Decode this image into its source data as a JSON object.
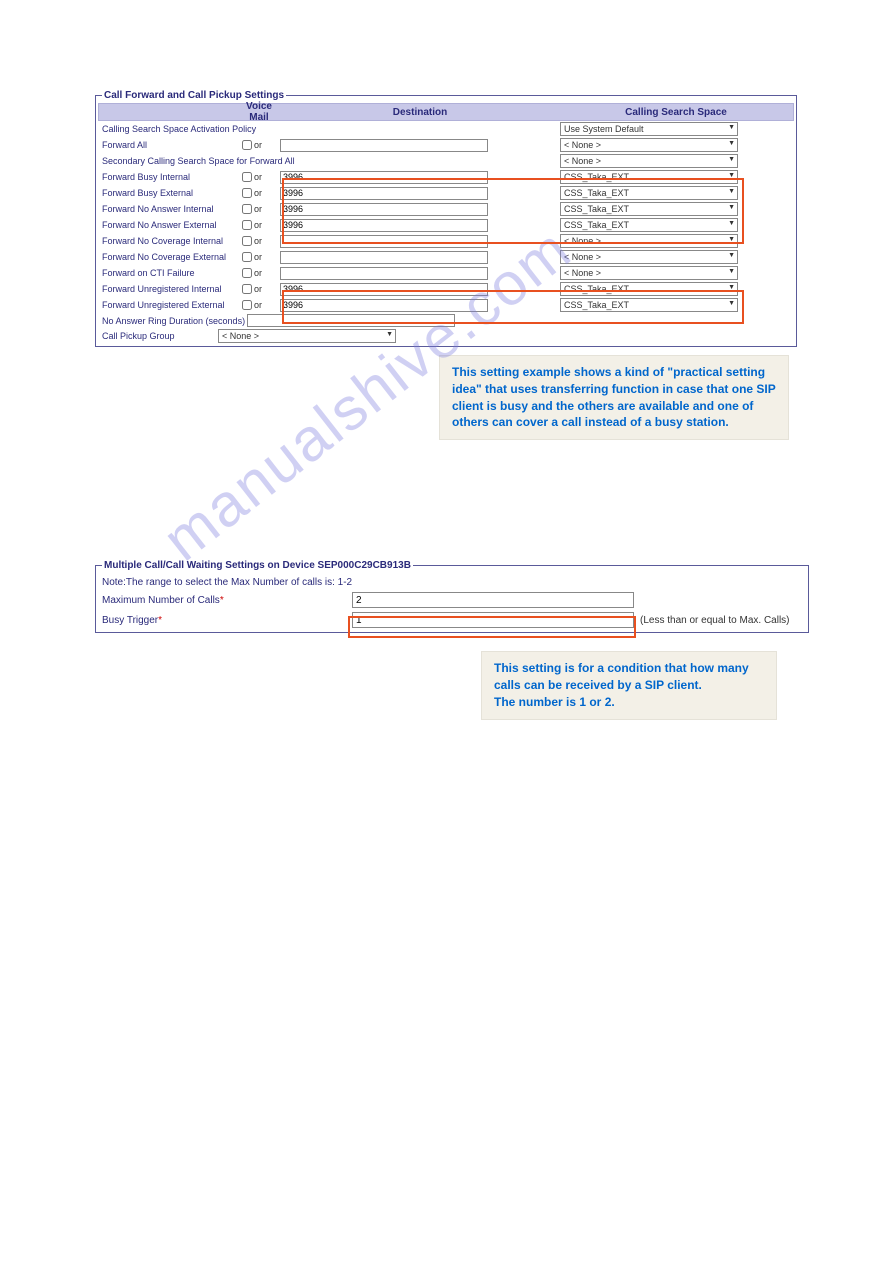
{
  "fs1": {
    "legend": "Call Forward and Call Pickup Settings",
    "headers": {
      "vm": "Voice Mail",
      "dest": "Destination",
      "css": "Calling Search Space"
    },
    "activation": {
      "label": "Calling Search Space Activation Policy",
      "value": "Use System Default"
    },
    "rows": [
      {
        "label": "Forward All",
        "dest": "",
        "css": "< None >"
      }
    ],
    "secondary": {
      "label": "Secondary Calling Search Space for Forward All",
      "css": "< None >"
    },
    "fwd_rows": [
      {
        "label": "Forward Busy Internal",
        "dest": "3996",
        "css": "CSS_Taka_EXT",
        "hl": 1
      },
      {
        "label": "Forward Busy External",
        "dest": "3996",
        "css": "CSS_Taka_EXT",
        "hl": 1
      },
      {
        "label": "Forward No Answer Internal",
        "dest": "3996",
        "css": "CSS_Taka_EXT",
        "hl": 1
      },
      {
        "label": "Forward No Answer External",
        "dest": "3996",
        "css": "CSS_Taka_EXT",
        "hl": 1
      },
      {
        "label": "Forward No Coverage Internal",
        "dest": "",
        "css": "< None >",
        "hl": 0
      },
      {
        "label": "Forward No Coverage External",
        "dest": "",
        "css": "< None >",
        "hl": 0
      },
      {
        "label": "Forward on CTI Failure",
        "dest": "",
        "css": "< None >",
        "hl": 0
      },
      {
        "label": "Forward Unregistered Internal",
        "dest": "3996",
        "css": "CSS_Taka_EXT",
        "hl": 2
      },
      {
        "label": "Forward Unregistered External",
        "dest": "3996",
        "css": "CSS_Taka_EXT",
        "hl": 2
      }
    ],
    "noanswer": {
      "label": "No Answer Ring Duration (seconds)",
      "value": ""
    },
    "pickup": {
      "label": "Call Pickup Group",
      "value": "< None >"
    },
    "or_text": "or"
  },
  "info1": "This setting example shows a kind of \"practical setting idea\" that uses transferring function in case that one SIP client is busy and the others are available and one of others can cover a call instead of a busy station.",
  "fs2": {
    "legend": "Multiple Call/Call Waiting Settings on Device SEP000C29CB913B",
    "note": "Note:The range to select the Max Number of calls is: 1-2",
    "max": {
      "label": "Maximum Number of Calls",
      "value": "2"
    },
    "busy": {
      "label": "Busy Trigger",
      "value": "1",
      "hint": "(Less than or equal to Max. Calls)"
    },
    "req": "*"
  },
  "info2": "This setting is for a condition that how many calls can be received by a SIP client.\nThe number is 1 or 2.",
  "watermark": "manualshive.com",
  "colors": {
    "highlight": "#e85020",
    "header_bg": "#c8c8e8",
    "text_link": "#2a2a7a",
    "info_text": "#0066cc",
    "info_bg": "#f3f0e7"
  }
}
